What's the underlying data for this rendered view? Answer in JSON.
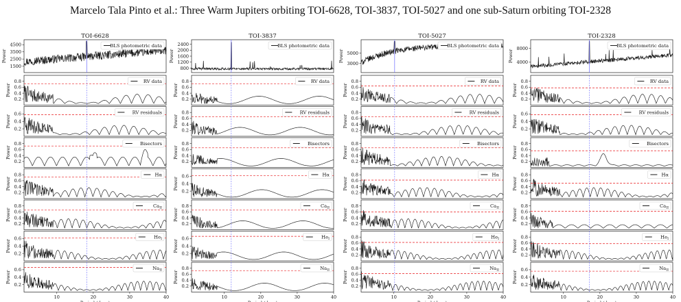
{
  "running_head": "Marcelo Tala Pinto et al.: Three Warm Jupiters orbiting TOI-6628, TOI-3837, TOI-5027 and one sub-Saturn orbiting TOI-2328",
  "colors": {
    "signal": "#1a1a1a",
    "fap": "#e8191c",
    "period": "#6b6bff"
  },
  "chart_data": {
    "type": "line",
    "description_of_axes": {
      "xlabel": "Period (days)",
      "ylabel": "Power",
      "xlim": [
        1,
        40
      ],
      "xticks": [
        10,
        20,
        30,
        40
      ]
    },
    "row_labels": [
      "BLS photometric data",
      "RV data",
      "RV residuals",
      "Bisectors",
      "Hα",
      "Ca_II",
      "He_I",
      "Na_II"
    ],
    "panels": [
      {
        "name": "TOI-6628",
        "period": 18.2,
        "bls_yticks": [
          1500,
          2500,
          3500,
          4500
        ],
        "bls_ylim": [
          600,
          5200
        ],
        "yticks": [
          [
            0.2,
            0.4,
            0.6,
            0.8
          ],
          [
            0.2,
            0.4,
            0.6
          ],
          [
            0.2,
            0.4,
            0.6,
            0.8
          ],
          [
            0.2,
            0.4,
            0.6,
            0.8
          ],
          [
            0.2,
            0.4,
            0.6,
            0.8
          ],
          [
            0.2,
            0.4,
            0.6
          ],
          [
            0.2,
            0.4,
            0.6
          ]
        ],
        "ylims": [
          [
            0,
            1
          ],
          [
            0,
            0.8
          ],
          [
            0,
            1
          ],
          [
            0,
            1
          ],
          [
            0,
            1
          ],
          [
            0,
            0.8
          ],
          [
            0,
            0.8
          ]
        ],
        "fap": [
          0.72,
          0.58,
          0.72,
          0.72,
          0.66,
          0.62,
          0.66
        ]
      },
      {
        "name": "TOI-3837",
        "period": 11.9,
        "bls_yticks": [
          800,
          1200,
          1600,
          2000,
          2400
        ],
        "bls_ylim": [
          500,
          2700
        ],
        "yticks": [
          [
            0.2,
            0.4,
            0.6,
            0.8
          ],
          [
            0.2,
            0.4,
            0.6,
            0.8
          ],
          [
            0.2,
            0.4,
            0.6,
            0.8
          ],
          [
            0.2,
            0.4,
            0.6
          ],
          [
            0.2,
            0.4,
            0.6,
            0.8
          ],
          [
            0.2,
            0.4,
            0.6
          ],
          [
            0.2,
            0.4,
            0.6,
            0.8
          ]
        ],
        "ylims": [
          [
            0,
            1
          ],
          [
            0,
            1
          ],
          [
            0,
            1
          ],
          [
            0,
            0.8
          ],
          [
            0,
            1
          ],
          [
            0,
            0.8
          ],
          [
            0,
            1
          ]
        ],
        "fap": [
          0.72,
          0.66,
          0.66,
          0.62,
          0.66,
          0.66,
          0.72
        ]
      },
      {
        "name": "TOI-5027",
        "period": 10.2,
        "bls_yticks": [
          3000,
          5000
        ],
        "bls_ylim": [
          1200,
          7600
        ],
        "yticks": [
          [
            0.2,
            0.4,
            0.6,
            0.8
          ],
          [
            0.2,
            0.4,
            0.6,
            0.8
          ],
          [
            0.2,
            0.4,
            0.6,
            0.8
          ],
          [
            0.2,
            0.4,
            0.6,
            0.8
          ],
          [
            0.2,
            0.4,
            0.6,
            0.8
          ],
          [
            0.2,
            0.4,
            0.6,
            0.8
          ],
          [
            0.2,
            0.4,
            0.6,
            0.8
          ]
        ],
        "ylims": [
          [
            0,
            1
          ],
          [
            0,
            1
          ],
          [
            0,
            1
          ],
          [
            0,
            1
          ],
          [
            0,
            1
          ],
          [
            0,
            1
          ],
          [
            0,
            1
          ]
        ],
        "fap": [
          0.64,
          0.66,
          0.66,
          0.62,
          0.6,
          0.62,
          0.62
        ]
      },
      {
        "name": "TOI-2328",
        "period": 17.1,
        "bls_yticks": [
          4000,
          8000
        ],
        "bls_ylim": [
          1000,
          10500
        ],
        "yticks": [
          [
            0.2,
            0.4,
            0.6,
            0.8
          ],
          [
            0.2,
            0.4,
            0.6
          ],
          [
            0.2,
            0.4,
            0.6,
            0.8
          ],
          [
            0.2,
            0.4,
            0.6,
            0.8
          ],
          [
            0.2,
            0.4,
            0.6,
            0.8
          ],
          [
            0.2,
            0.4,
            0.6,
            0.8
          ],
          [
            0.2,
            0.4,
            0.6
          ]
        ],
        "ylims": [
          [
            0,
            1
          ],
          [
            0,
            0.8
          ],
          [
            0,
            1
          ],
          [
            0,
            1
          ],
          [
            0,
            1
          ],
          [
            0,
            1
          ],
          [
            0,
            0.8
          ]
        ],
        "fap": [
          0.58,
          0.58,
          0.56,
          0.52,
          0.62,
          0.58,
          0.56
        ]
      }
    ]
  }
}
